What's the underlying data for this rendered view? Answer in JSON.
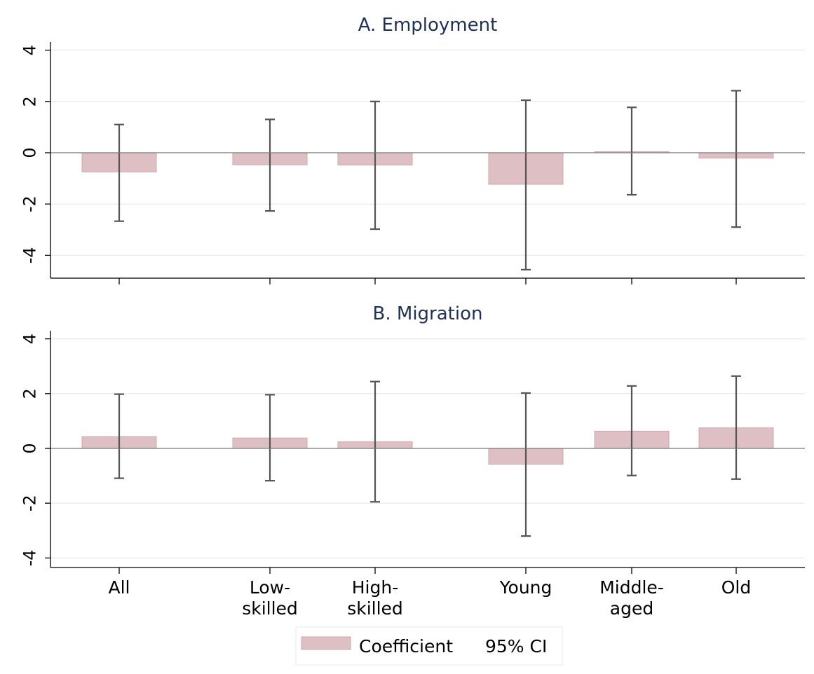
{
  "chart_data": [
    {
      "type": "bar",
      "title": "A. Employment",
      "categories": [
        "All",
        "Low-skilled",
        "High-skilled",
        "Young",
        "Middle-aged",
        "Old"
      ],
      "values": [
        -0.75,
        -0.47,
        -0.48,
        -1.23,
        0.04,
        -0.21
      ],
      "ci_low": [
        -2.67,
        -2.27,
        -2.98,
        -4.56,
        -1.64,
        -2.9
      ],
      "ci_high": [
        1.1,
        1.3,
        2.0,
        2.05,
        1.77,
        2.42
      ],
      "yticks": [
        "4",
        "2",
        "0",
        "-2",
        "-4"
      ],
      "ylim": [
        -4.9,
        4.3
      ],
      "grid": true
    },
    {
      "type": "bar",
      "title": "B. Migration",
      "categories": [
        "All",
        "Low-skilled",
        "High-skilled",
        "Young",
        "Middle-aged",
        "Old"
      ],
      "xtick_labels": [
        [
          "All"
        ],
        [
          "Low-",
          "skilled"
        ],
        [
          "High-",
          "skilled"
        ],
        [
          "Young"
        ],
        [
          "Middle-",
          "aged"
        ],
        [
          "Old"
        ]
      ],
      "values": [
        0.43,
        0.38,
        0.24,
        -0.58,
        0.63,
        0.75
      ],
      "ci_low": [
        -1.09,
        -1.18,
        -1.95,
        -3.2,
        -0.99,
        -1.12
      ],
      "ci_high": [
        1.98,
        1.96,
        2.44,
        2.02,
        2.28,
        2.64
      ],
      "yticks": [
        "4",
        "2",
        "0",
        "-2",
        "-4"
      ],
      "ylim": [
        -4.4,
        4.2
      ],
      "grid": true
    }
  ],
  "legend": {
    "position": "bottom",
    "items": [
      "Coefficient",
      "95% CI"
    ]
  },
  "colors": {
    "bar_fill": "#dec0c4",
    "bar_stroke": "#cfa7ad",
    "ci": "#555555",
    "axis": "#000000",
    "grid": "#ececec",
    "title": "#1f3255"
  }
}
